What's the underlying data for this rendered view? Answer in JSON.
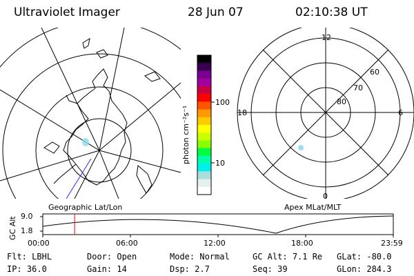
{
  "header": {
    "instrument": "Ultraviolet Imager",
    "date": "28 Jun 07",
    "time": "02:10:38 UT"
  },
  "colorbar": {
    "unit_label": "photon cm⁻²s⁻¹",
    "ticks": [
      "100",
      "10"
    ],
    "colors": [
      "#000000",
      "#3a0050",
      "#7a0090",
      "#a000a0",
      "#cc0040",
      "#ff0000",
      "#ff5500",
      "#ff9900",
      "#ffcc00",
      "#ffff00",
      "#ccff00",
      "#88ff00",
      "#00ff44",
      "#00ffaa",
      "#00eeee",
      "#aadddd",
      "#e6eeee",
      "#ffffff"
    ]
  },
  "geo_map": {
    "label": "Geographic Lat/Lon"
  },
  "apex_map": {
    "label": "Apex MLat/MLT",
    "mlt_labels": {
      "top": "12",
      "left": "18",
      "right": "6",
      "bottom": "0"
    },
    "lat_labels": [
      "60",
      "70",
      "80"
    ]
  },
  "timeline": {
    "ylabel": "GC Alt",
    "yticks": [
      "9.0",
      "1.8"
    ],
    "xticks": [
      "00:00",
      "06:00",
      "12:00",
      "18:00",
      "23:59"
    ],
    "marker_time_hours": 2.18,
    "marker_color": "#ff0000"
  },
  "info": {
    "row1": [
      {
        "key": "Flt:",
        "value": "LBHL"
      },
      {
        "key": "Door:",
        "value": "Open"
      },
      {
        "key": "Mode:",
        "value": "Normal"
      },
      {
        "key": "GC Alt:",
        "value": "7.1 Re"
      },
      {
        "key": "GLat:",
        "value": "-80.0"
      }
    ],
    "row2": [
      {
        "key": "IP:",
        "value": "36.0"
      },
      {
        "key": "Gain:",
        "value": "14"
      },
      {
        "key": "Dsp:",
        "value": "2.7"
      },
      {
        "key": "Seq:",
        "value": "39"
      },
      {
        "key": "GLon:",
        "value": "284.3"
      }
    ]
  }
}
